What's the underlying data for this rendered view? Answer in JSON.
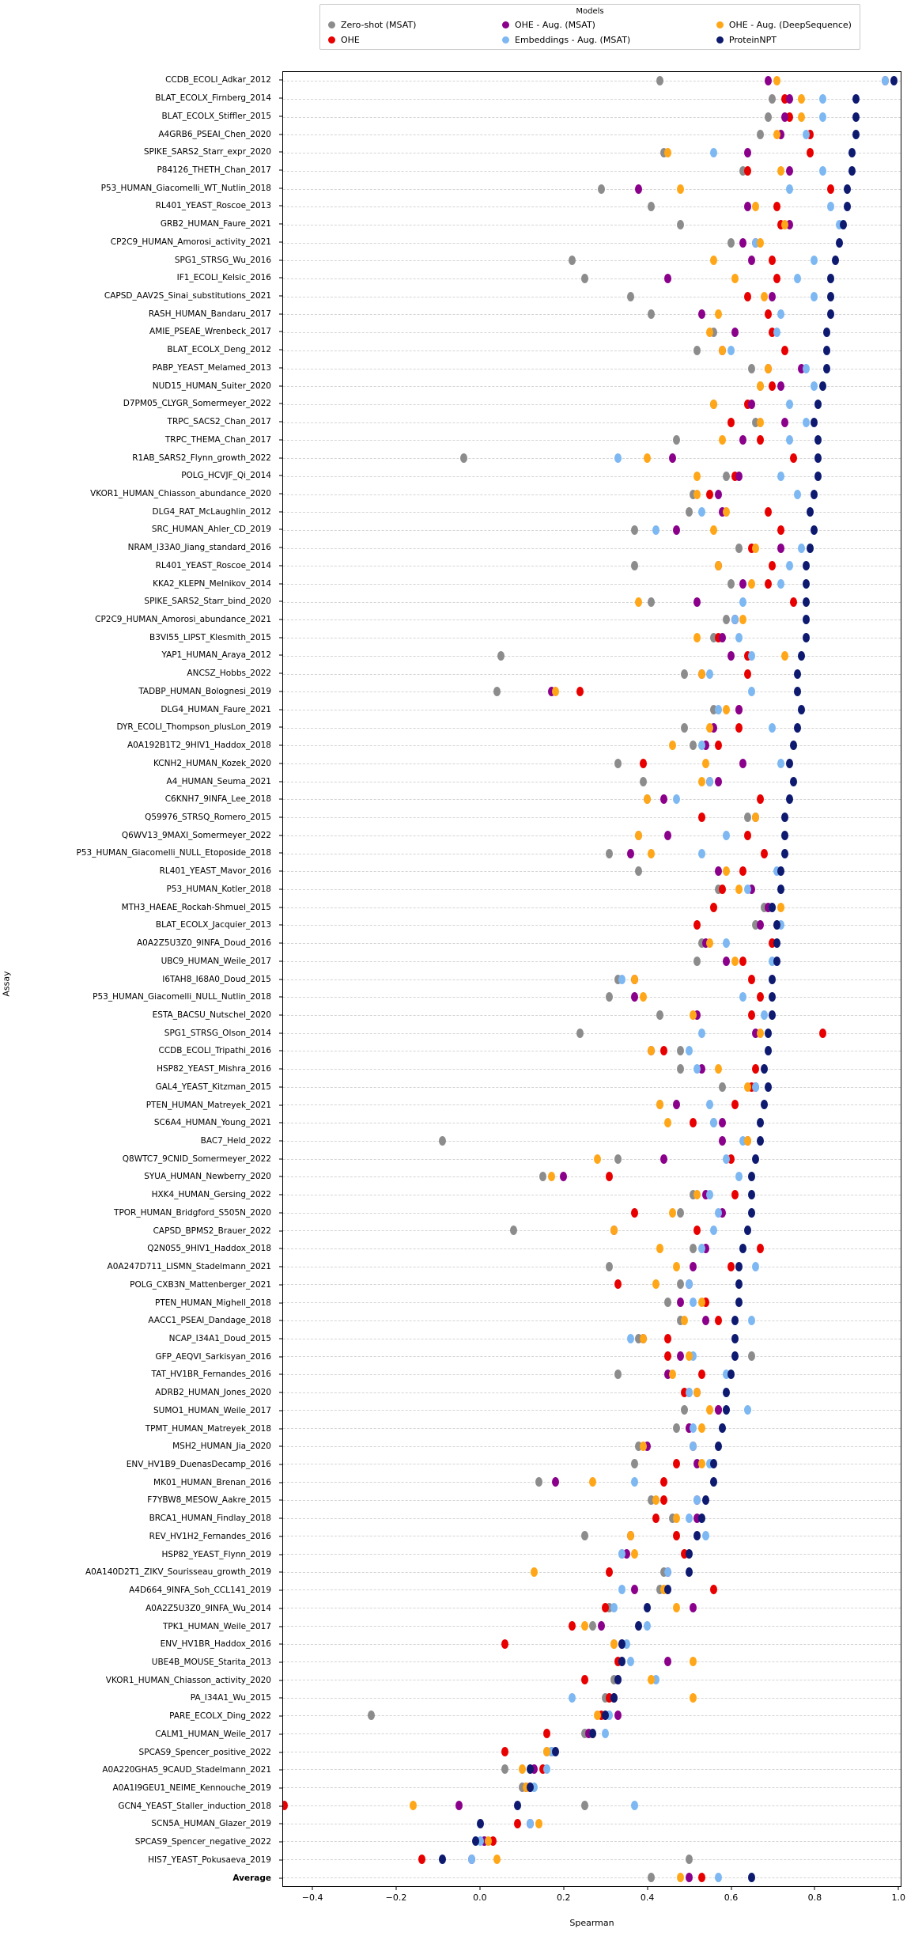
{
  "legend": {
    "title": "Models",
    "columns": [
      [
        {
          "label": "Zero-shot (MSAT)",
          "color_key": "zero_shot"
        },
        {
          "label": "OHE",
          "color_key": "ohe"
        }
      ],
      [
        {
          "label": "OHE - Aug. (MSAT)",
          "color_key": "ohe_aug_msat"
        },
        {
          "label": "Embeddings - Aug. (MSAT)",
          "color_key": "emb_aug_msat"
        }
      ],
      [
        {
          "label": "OHE - Aug. (DeepSequence)",
          "color_key": "ohe_aug_ds"
        },
        {
          "label": "ProteinNPT",
          "color_key": "proteinnpt"
        }
      ]
    ]
  },
  "colors": {
    "zero_shot": "#8c8c8c",
    "ohe": "#e80000",
    "ohe_aug_msat": "#8b008b",
    "emb_aug_msat": "#7db8f2",
    "ohe_aug_ds": "#ffa718",
    "proteinnpt": "#0d1a70",
    "gridline": "#d4d4d4",
    "axis": "#000000"
  },
  "axes": {
    "xlabel": "Spearman",
    "ylabel": "Assay",
    "xmin": -0.472,
    "xmax": 1.007,
    "xticks": [
      {
        "label": "−0.4",
        "value": -0.4
      },
      {
        "label": "−0.2",
        "value": -0.2
      },
      {
        "label": "0.0",
        "value": 0.0
      },
      {
        "label": "0.2",
        "value": 0.2
      },
      {
        "label": "0.4",
        "value": 0.4
      },
      {
        "label": "0.6",
        "value": 0.6
      },
      {
        "label": "0.8",
        "value": 0.8
      },
      {
        "label": "1.0",
        "value": 1.0
      }
    ],
    "grid": "horizontal-dashed",
    "legend_position": "top-center",
    "bold_category": "Average"
  },
  "chart_data": {
    "type": "scatter",
    "title": "",
    "xlabel": "Spearman",
    "ylabel": "Assay",
    "xlim": [
      -0.472,
      1.007
    ],
    "categories": [
      "CCDB_ECOLI_Adkar_2012",
      "BLAT_ECOLX_Firnberg_2014",
      "BLAT_ECOLX_Stiffler_2015",
      "A4GRB6_PSEAI_Chen_2020",
      "SPIKE_SARS2_Starr_expr_2020",
      "P84126_THETH_Chan_2017",
      "P53_HUMAN_Giacomelli_WT_Nutlin_2018",
      "RL401_YEAST_Roscoe_2013",
      "GRB2_HUMAN_Faure_2021",
      "CP2C9_HUMAN_Amorosi_activity_2021",
      "SPG1_STRSG_Wu_2016",
      "IF1_ECOLI_Kelsic_2016",
      "CAPSD_AAV2S_Sinai_substitutions_2021",
      "RASH_HUMAN_Bandaru_2017",
      "AMIE_PSEAE_Wrenbeck_2017",
      "BLAT_ECOLX_Deng_2012",
      "PABP_YEAST_Melamed_2013",
      "NUD15_HUMAN_Suiter_2020",
      "D7PM05_CLYGR_Somermeyer_2022",
      "TRPC_SACS2_Chan_2017",
      "TRPC_THEMA_Chan_2017",
      "R1AB_SARS2_Flynn_growth_2022",
      "POLG_HCVJF_Qi_2014",
      "VKOR1_HUMAN_Chiasson_abundance_2020",
      "DLG4_RAT_McLaughlin_2012",
      "SRC_HUMAN_Ahler_CD_2019",
      "NRAM_I33A0_Jiang_standard_2016",
      "RL401_YEAST_Roscoe_2014",
      "KKA2_KLEPN_Melnikov_2014",
      "SPIKE_SARS2_Starr_bind_2020",
      "CP2C9_HUMAN_Amorosi_abundance_2021",
      "B3VI55_LIPST_Klesmith_2015",
      "YAP1_HUMAN_Araya_2012",
      "ANCSZ_Hobbs_2022",
      "TADBP_HUMAN_Bolognesi_2019",
      "DLG4_HUMAN_Faure_2021",
      "DYR_ECOLI_Thompson_plusLon_2019",
      "A0A192B1T2_9HIV1_Haddox_2018",
      "KCNH2_HUMAN_Kozek_2020",
      "A4_HUMAN_Seuma_2021",
      "C6KNH7_9INFA_Lee_2018",
      "Q59976_STRSQ_Romero_2015",
      "Q6WV13_9MAXI_Somermeyer_2022",
      "P53_HUMAN_Giacomelli_NULL_Etoposide_2018",
      "RL401_YEAST_Mavor_2016",
      "P53_HUMAN_Kotler_2018",
      "MTH3_HAEAE_Rockah-Shmuel_2015",
      "BLAT_ECOLX_Jacquier_2013",
      "A0A2Z5U3Z0_9INFA_Doud_2016",
      "UBC9_HUMAN_Weile_2017",
      "I6TAH8_I68A0_Doud_2015",
      "P53_HUMAN_Giacomelli_NULL_Nutlin_2018",
      "ESTA_BACSU_Nutschel_2020",
      "SPG1_STRSG_Olson_2014",
      "CCDB_ECOLI_Tripathi_2016",
      "HSP82_YEAST_Mishra_2016",
      "GAL4_YEAST_Kitzman_2015",
      "PTEN_HUMAN_Matreyek_2021",
      "SC6A4_HUMAN_Young_2021",
      "BAC7_Held_2022",
      "Q8WTC7_9CNID_Somermeyer_2022",
      "SYUA_HUMAN_Newberry_2020",
      "HXK4_HUMAN_Gersing_2022",
      "TPOR_HUMAN_Bridgford_S505N_2020",
      "CAPSD_BPMS2_Brauer_2022",
      "Q2N0S5_9HIV1_Haddox_2018",
      "A0A247D711_LISMN_Stadelmann_2021",
      "POLG_CXB3N_Mattenberger_2021",
      "PTEN_HUMAN_Mighell_2018",
      "AACC1_PSEAI_Dandage_2018",
      "NCAP_I34A1_Doud_2015",
      "GFP_AEQVI_Sarkisyan_2016",
      "TAT_HV1BR_Fernandes_2016",
      "ADRB2_HUMAN_Jones_2020",
      "SUMO1_HUMAN_Weile_2017",
      "TPMT_HUMAN_Matreyek_2018",
      "MSH2_HUMAN_Jia_2020",
      "ENV_HV1B9_DuenasDecamp_2016",
      "MK01_HUMAN_Brenan_2016",
      "F7YBW8_MESOW_Aakre_2015",
      "BRCA1_HUMAN_Findlay_2018",
      "REV_HV1H2_Fernandes_2016",
      "HSP82_YEAST_Flynn_2019",
      "A0A140D2T1_ZIKV_Sourisseau_growth_2019",
      "A4D664_9INFA_Soh_CCL141_2019",
      "A0A2Z5U3Z0_9INFA_Wu_2014",
      "TPK1_HUMAN_Weile_2017",
      "ENV_HV1BR_Haddox_2016",
      "UBE4B_MOUSE_Starita_2013",
      "VKOR1_HUMAN_Chiasson_activity_2020",
      "PA_I34A1_Wu_2015",
      "PARE_ECOLX_Ding_2022",
      "CALM1_HUMAN_Weile_2017",
      "SPCAS9_Spencer_positive_2022",
      "A0A220GHA5_9CAUD_Stadelmann_2021",
      "A0A1I9GEU1_NEIME_Kennouche_2019",
      "GCN4_YEAST_Staller_induction_2018",
      "SCN5A_HUMAN_Glazer_2019",
      "SPCAS9_Spencer_negative_2022",
      "HIS7_YEAST_Pokusaeva_2019",
      "Average"
    ],
    "series": [
      {
        "name": "Zero-shot (MSAT)",
        "color_key": "zero_shot",
        "values": [
          0.43,
          0.7,
          0.69,
          0.67,
          0.44,
          0.63,
          0.29,
          0.41,
          0.48,
          0.6,
          0.22,
          0.25,
          0.36,
          0.41,
          0.56,
          0.52,
          0.65,
          0.67,
          0.56,
          0.66,
          0.47,
          -0.04,
          0.59,
          0.51,
          0.5,
          0.37,
          0.62,
          0.37,
          0.6,
          0.41,
          0.59,
          0.56,
          0.05,
          0.49,
          0.04,
          0.56,
          0.49,
          0.51,
          0.33,
          0.39,
          0.4,
          0.64,
          0.38,
          0.31,
          0.38,
          0.57,
          0.68,
          0.66,
          0.53,
          0.52,
          0.33,
          0.31,
          0.43,
          0.24,
          0.48,
          0.48,
          0.58,
          0.43,
          0.56,
          -0.09,
          0.33,
          0.15,
          0.51,
          0.48,
          0.08,
          0.51,
          0.31,
          0.48,
          0.45,
          0.48,
          0.38,
          0.65,
          0.33,
          0.5,
          0.49,
          0.47,
          0.38,
          0.37,
          0.14,
          0.41,
          0.46,
          0.25,
          0.34,
          0.44,
          0.43,
          0.31,
          0.27,
          0.32,
          0.34,
          0.32,
          0.3,
          -0.26,
          0.25,
          0.16,
          0.06,
          0.1,
          0.25,
          0.12,
          0.01,
          0.5,
          0.41
        ]
      },
      {
        "name": "OHE",
        "color_key": "ohe",
        "values": [
          0.97,
          0.73,
          0.74,
          0.79,
          0.79,
          0.64,
          0.84,
          0.71,
          0.72,
          0.66,
          0.7,
          0.71,
          0.64,
          0.69,
          0.7,
          0.73,
          0.69,
          0.7,
          0.64,
          0.6,
          0.67,
          0.75,
          0.61,
          0.55,
          0.69,
          0.72,
          0.65,
          0.7,
          0.69,
          0.75,
          0.61,
          0.57,
          0.64,
          0.64,
          0.24,
          0.62,
          0.62,
          0.57,
          0.39,
          0.55,
          0.67,
          0.53,
          0.64,
          0.68,
          0.63,
          0.58,
          0.56,
          0.52,
          0.7,
          0.63,
          0.65,
          0.67,
          0.65,
          0.82,
          0.44,
          0.66,
          0.65,
          0.61,
          0.51,
          0.64,
          0.6,
          0.31,
          0.61,
          0.37,
          0.52,
          0.67,
          0.6,
          0.33,
          0.54,
          0.57,
          0.45,
          0.45,
          0.53,
          0.49,
          0.57,
          0.5,
          0.51,
          0.47,
          0.44,
          0.44,
          0.42,
          0.47,
          0.49,
          0.31,
          0.56,
          0.3,
          0.22,
          0.06,
          0.33,
          0.25,
          0.31,
          0.29,
          0.16,
          0.06,
          0.15,
          0.11,
          -0.47,
          0.09,
          0.03,
          -0.14,
          0.53
        ]
      },
      {
        "name": "OHE - Aug. (MSAT)",
        "color_key": "ohe_aug_msat",
        "values": [
          0.69,
          0.74,
          0.73,
          0.72,
          0.64,
          0.74,
          0.38,
          0.64,
          0.74,
          0.63,
          0.65,
          0.45,
          0.7,
          0.53,
          0.61,
          0.58,
          0.77,
          0.72,
          0.65,
          0.73,
          0.63,
          0.46,
          0.62,
          0.57,
          0.58,
          0.47,
          0.72,
          0.57,
          0.63,
          0.52,
          0.61,
          0.58,
          0.6,
          0.53,
          0.17,
          0.62,
          0.56,
          0.54,
          0.63,
          0.57,
          0.44,
          0.66,
          0.45,
          0.36,
          0.57,
          0.65,
          0.69,
          0.67,
          0.54,
          0.59,
          0.37,
          0.37,
          0.52,
          0.66,
          0.41,
          0.53,
          0.66,
          0.47,
          0.58,
          0.58,
          0.44,
          0.2,
          0.54,
          0.58,
          0.32,
          0.54,
          0.51,
          0.5,
          0.48,
          0.54,
          0.39,
          0.48,
          0.45,
          0.52,
          0.57,
          0.5,
          0.4,
          0.52,
          0.18,
          0.52,
          0.52,
          0.36,
          0.35,
          0.45,
          0.37,
          0.51,
          0.29,
          0.34,
          0.45,
          0.33,
          0.32,
          0.33,
          0.26,
          0.17,
          0.13,
          0.12,
          -0.05,
          0.12,
          0.01,
          -0.02,
          0.5
        ]
      },
      {
        "name": "Embeddings - Aug. (MSAT)",
        "color_key": "emb_aug_msat",
        "values": [
          0.97,
          0.82,
          0.82,
          0.78,
          0.56,
          0.82,
          0.74,
          0.84,
          0.86,
          0.66,
          0.8,
          0.76,
          0.8,
          0.72,
          0.71,
          0.6,
          0.78,
          0.8,
          0.74,
          0.78,
          0.74,
          0.33,
          0.72,
          0.76,
          0.53,
          0.42,
          0.77,
          0.74,
          0.72,
          0.63,
          0.61,
          0.62,
          0.65,
          0.55,
          0.65,
          0.57,
          0.7,
          0.53,
          0.72,
          0.55,
          0.47,
          0.66,
          0.59,
          0.53,
          0.71,
          0.64,
          0.7,
          0.72,
          0.59,
          0.7,
          0.34,
          0.63,
          0.68,
          0.53,
          0.5,
          0.52,
          0.66,
          0.55,
          0.56,
          0.63,
          0.59,
          0.62,
          0.55,
          0.57,
          0.56,
          0.53,
          0.66,
          0.5,
          0.51,
          0.65,
          0.36,
          0.51,
          0.59,
          0.5,
          0.64,
          0.51,
          0.51,
          0.55,
          0.37,
          0.52,
          0.5,
          0.54,
          0.34,
          0.45,
          0.34,
          0.32,
          0.4,
          0.35,
          0.36,
          0.42,
          0.22,
          0.31,
          0.3,
          0.17,
          0.16,
          0.13,
          0.37,
          0.12,
          0.0,
          -0.02,
          0.57
        ]
      },
      {
        "name": "OHE - Aug. (DeepSequence)",
        "color_key": "ohe_aug_ds",
        "values": [
          0.71,
          0.77,
          0.77,
          0.71,
          0.45,
          0.72,
          0.48,
          0.66,
          0.73,
          0.67,
          0.56,
          0.61,
          0.68,
          0.57,
          0.55,
          0.58,
          0.69,
          0.67,
          0.56,
          0.67,
          0.58,
          0.4,
          0.52,
          0.52,
          0.59,
          0.56,
          0.66,
          0.57,
          0.65,
          0.38,
          0.63,
          0.52,
          0.73,
          0.53,
          0.18,
          0.59,
          0.55,
          0.46,
          0.54,
          0.53,
          0.4,
          0.66,
          0.38,
          0.41,
          0.59,
          0.62,
          0.72,
          0.71,
          0.55,
          0.61,
          0.37,
          0.39,
          0.51,
          0.67,
          0.41,
          0.57,
          0.64,
          0.43,
          0.45,
          0.64,
          0.28,
          0.17,
          0.52,
          0.46,
          0.32,
          0.43,
          0.47,
          0.42,
          0.53,
          0.49,
          0.39,
          0.5,
          0.46,
          0.52,
          0.55,
          0.53,
          0.39,
          0.53,
          0.27,
          0.42,
          0.47,
          0.36,
          0.37,
          0.13,
          0.44,
          0.47,
          0.25,
          0.32,
          0.51,
          0.41,
          0.51,
          0.28,
          0.27,
          0.16,
          0.1,
          0.11,
          -0.16,
          0.14,
          0.02,
          0.04,
          0.48
        ]
      },
      {
        "name": "ProteinNPT",
        "color_key": "proteinnpt",
        "values": [
          0.99,
          0.9,
          0.9,
          0.9,
          0.89,
          0.89,
          0.88,
          0.88,
          0.87,
          0.86,
          0.85,
          0.84,
          0.84,
          0.84,
          0.83,
          0.83,
          0.83,
          0.82,
          0.81,
          0.8,
          0.81,
          0.81,
          0.81,
          0.8,
          0.79,
          0.8,
          0.79,
          0.78,
          0.78,
          0.78,
          0.78,
          0.78,
          0.77,
          0.76,
          0.76,
          0.77,
          0.76,
          0.75,
          0.74,
          0.75,
          0.74,
          0.73,
          0.73,
          0.73,
          0.72,
          0.72,
          0.7,
          0.71,
          0.71,
          0.71,
          0.7,
          0.7,
          0.7,
          0.69,
          0.69,
          0.68,
          0.69,
          0.68,
          0.67,
          0.67,
          0.66,
          0.65,
          0.65,
          0.65,
          0.64,
          0.63,
          0.62,
          0.62,
          0.62,
          0.61,
          0.61,
          0.61,
          0.6,
          0.59,
          0.59,
          0.58,
          0.57,
          0.56,
          0.56,
          0.54,
          0.53,
          0.52,
          0.5,
          0.5,
          0.45,
          0.4,
          0.38,
          0.34,
          0.34,
          0.33,
          0.32,
          0.3,
          0.27,
          0.18,
          0.12,
          0.12,
          0.09,
          0.0,
          -0.01,
          -0.09,
          0.65
        ]
      }
    ]
  }
}
